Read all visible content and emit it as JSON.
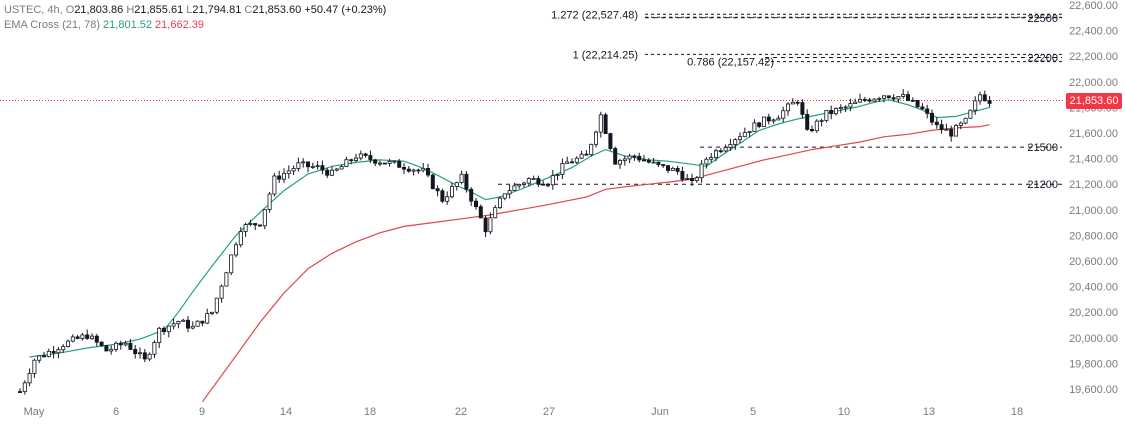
{
  "legend": {
    "symbol": "USTEC, 4h,",
    "o_label": "O",
    "o": "21,803.86",
    "h_label": "H",
    "h": "21,855.61",
    "l_label": "L",
    "l": "21,794.81",
    "c_label": "C",
    "c": "21,853.60",
    "change": "+50.47 (+0.23%)",
    "indicator": "EMA Cross (21, 78)",
    "ema_fast": "21,801.52",
    "ema_slow": "21,662.39"
  },
  "last_price_tag": "21,853.60",
  "colors": {
    "candle": "#131722",
    "ema_fast": "#26a17b",
    "ema_slow": "#e0474c",
    "last_price": "#f23645",
    "axis_text": "#787b86"
  },
  "chart_data": {
    "type": "candlestick",
    "timeframe": "4h",
    "y_axis_labels": [
      "22,600.00",
      "22,400.00",
      "22,200.00",
      "22,000.00",
      "21,800.00",
      "21,600.00",
      "21,400.00",
      "21,200.00",
      "21,000.00",
      "20,800.00",
      "20,600.00",
      "20,400.00",
      "20,200.00",
      "20,000.00",
      "19,800.00",
      "19,600.00"
    ],
    "x_axis_labels": [
      "May",
      "6",
      "9",
      "14",
      "18",
      "22",
      "27",
      "Jun",
      "5",
      "10",
      "13",
      "18"
    ],
    "ylim": [
      19500,
      22650
    ],
    "grid": false,
    "last_price": 21853.6,
    "levels": [
      {
        "label": "21500",
        "price": 21490,
        "x_from": "May 31"
      },
      {
        "label": "21200",
        "price": 21200,
        "x_from": "May 22"
      },
      {
        "label": "22200",
        "price": 22190,
        "x_from": "Jun 5"
      },
      {
        "label": "22500",
        "price": 22500,
        "x_from": "May 27"
      }
    ],
    "fibonacci": [
      {
        "label": "1.272 (22,527.48)",
        "price": 22527.48
      },
      {
        "label": "1 (22,214.25)",
        "price": 22214.25
      },
      {
        "label": "0.786 (22,157.42)",
        "price": 22157.42
      }
    ],
    "ema_fast_points": [
      [
        2,
        19850
      ],
      [
        8,
        19880
      ],
      [
        14,
        19920
      ],
      [
        20,
        19950
      ],
      [
        25,
        19990
      ],
      [
        30,
        20060
      ],
      [
        33,
        20200
      ],
      [
        36,
        20360
      ],
      [
        40,
        20560
      ],
      [
        45,
        20800
      ],
      [
        50,
        20980
      ],
      [
        55,
        21150
      ],
      [
        60,
        21280
      ],
      [
        65,
        21340
      ],
      [
        70,
        21370
      ],
      [
        75,
        21390
      ],
      [
        80,
        21380
      ],
      [
        83,
        21340
      ],
      [
        87,
        21270
      ],
      [
        91,
        21190
      ],
      [
        94,
        21140
      ],
      [
        97,
        21080
      ],
      [
        100,
        21100
      ],
      [
        105,
        21170
      ],
      [
        110,
        21250
      ],
      [
        115,
        21330
      ],
      [
        119,
        21420
      ],
      [
        122,
        21470
      ],
      [
        126,
        21420
      ],
      [
        131,
        21390
      ],
      [
        135,
        21380
      ],
      [
        139,
        21360
      ],
      [
        143,
        21340
      ],
      [
        146,
        21420
      ],
      [
        150,
        21520
      ],
      [
        154,
        21620
      ],
      [
        158,
        21670
      ],
      [
        162,
        21710
      ],
      [
        166,
        21740
      ],
      [
        170,
        21770
      ],
      [
        174,
        21800
      ],
      [
        178,
        21840
      ],
      [
        181,
        21860
      ],
      [
        185,
        21820
      ],
      [
        188,
        21780
      ],
      [
        191,
        21720
      ],
      [
        195,
        21730
      ],
      [
        199,
        21770
      ],
      [
        202,
        21800
      ]
    ],
    "ema_slow_points": [
      [
        38,
        19500
      ],
      [
        45,
        19860
      ],
      [
        50,
        20120
      ],
      [
        55,
        20350
      ],
      [
        60,
        20540
      ],
      [
        65,
        20660
      ],
      [
        70,
        20750
      ],
      [
        75,
        20820
      ],
      [
        80,
        20870
      ],
      [
        86,
        20900
      ],
      [
        92,
        20930
      ],
      [
        98,
        20960
      ],
      [
        104,
        21000
      ],
      [
        110,
        21040
      ],
      [
        114,
        21070
      ],
      [
        118,
        21100
      ],
      [
        122,
        21160
      ],
      [
        126,
        21180
      ],
      [
        131,
        21200
      ],
      [
        136,
        21220
      ],
      [
        140,
        21240
      ],
      [
        145,
        21290
      ],
      [
        150,
        21340
      ],
      [
        155,
        21390
      ],
      [
        160,
        21430
      ],
      [
        165,
        21470
      ],
      [
        170,
        21500
      ],
      [
        175,
        21530
      ],
      [
        180,
        21570
      ],
      [
        185,
        21590
      ],
      [
        190,
        21620
      ],
      [
        195,
        21640
      ],
      [
        200,
        21650
      ],
      [
        202,
        21665
      ]
    ]
  }
}
